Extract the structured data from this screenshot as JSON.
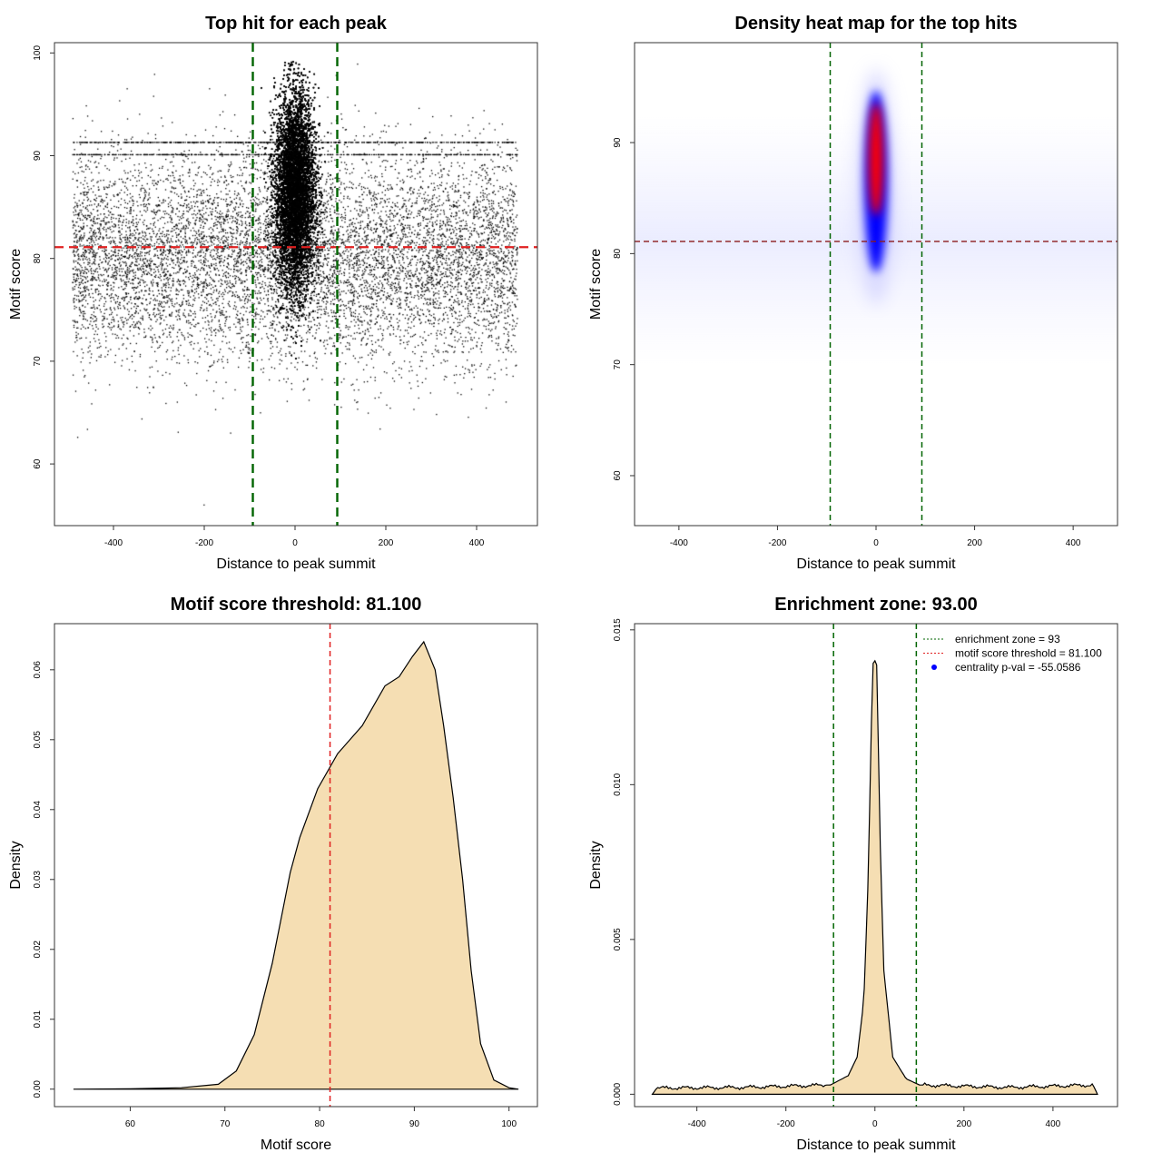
{
  "chart_data": [
    {
      "type": "scatter",
      "title": "Top hit for each peak",
      "xlabel": "Distance to peak summit",
      "ylabel": "Motif score",
      "xticks": [
        -400,
        -200,
        0,
        200,
        400
      ],
      "yticks": [
        60,
        70,
        80,
        90,
        100
      ],
      "xlim": [
        -530,
        534
      ],
      "ylim": [
        54,
        101
      ],
      "hlines": [
        {
          "y": 81.1,
          "color": "#e02020",
          "style": "dashed"
        }
      ],
      "vlines": [
        {
          "x": -93,
          "color": "#006400",
          "style": "dashed"
        },
        {
          "x": 93,
          "color": "#006400",
          "style": "dashed"
        }
      ],
      "point_color": "#000000"
    },
    {
      "type": "heatmap",
      "title": "Density heat map for the top hits",
      "xlabel": "Distance to peak summit",
      "ylabel": "Motif score",
      "xticks": [
        -400,
        -200,
        0,
        200,
        400
      ],
      "yticks": [
        60,
        70,
        80,
        90
      ],
      "xlim": [
        -490,
        490
      ],
      "ylim": [
        55.5,
        99
      ],
      "colors": [
        "#ffffff",
        "#0000ff",
        "#ff0000"
      ],
      "hlines": [
        {
          "y": 81.1,
          "color": "#8b1a1a",
          "style": "dashed"
        }
      ],
      "vlines": [
        {
          "x": -93,
          "color": "#006400",
          "style": "dashed"
        },
        {
          "x": 93,
          "color": "#006400",
          "style": "dashed"
        }
      ]
    },
    {
      "type": "area",
      "title": "Motif score threshold: 81.100",
      "xlabel": "Motif score",
      "ylabel": "Density",
      "xticks": [
        60,
        70,
        80,
        90,
        100
      ],
      "yticks": [
        "0.00",
        "0.01",
        "0.02",
        "0.03",
        "0.04",
        "0.05",
        "0.06"
      ],
      "xlim": [
        52,
        103
      ],
      "ylim": [
        -0.0025,
        0.0666
      ],
      "fill": "#f5deb3",
      "x": [
        54,
        60,
        65.4,
        69.3,
        71.2,
        73.1,
        75,
        76.9,
        77.9,
        79.8,
        81.9,
        84.5,
        86.9,
        88.4,
        89.8,
        91,
        92.2,
        93.1,
        94.1,
        95.1,
        96,
        97,
        98.4,
        100,
        101
      ],
      "y": [
        0,
        5e-05,
        0.0002,
        0.0007,
        0.0026,
        0.0078,
        0.018,
        0.031,
        0.036,
        0.043,
        0.048,
        0.052,
        0.0577,
        0.059,
        0.0619,
        0.064,
        0.06,
        0.052,
        0.0417,
        0.03,
        0.017,
        0.0065,
        0.0013,
        0.0002,
        0
      ],
      "vlines": [
        {
          "x": 81.1,
          "color": "#e02020",
          "style": "dashed"
        }
      ]
    },
    {
      "type": "area",
      "title": "Enrichment zone: 93.00",
      "xlabel": "Distance to peak summit",
      "ylabel": "Density",
      "xticks": [
        -400,
        -200,
        0,
        200,
        400
      ],
      "yticks": [
        "0.000",
        "0.005",
        "0.010",
        "0.015"
      ],
      "xlim": [
        -540,
        545
      ],
      "ylim": [
        -0.0004,
        0.0152
      ],
      "fill": "#f5deb3",
      "x": [
        -500,
        -490,
        -300,
        -100,
        -60,
        -40,
        -25,
        -15,
        -8,
        -3,
        0,
        3,
        6,
        10,
        20,
        40,
        70,
        100,
        300,
        490,
        500
      ],
      "y": [
        0,
        0.0002,
        0.00022,
        0.0003,
        0.0006,
        0.0012,
        0.003,
        0.007,
        0.012,
        0.0144,
        0.014,
        0.0143,
        0.013,
        0.009,
        0.004,
        0.0012,
        0.0005,
        0.0003,
        0.00022,
        0.0003,
        0
      ],
      "vlines": [
        {
          "x": -93,
          "color": "#006400",
          "style": "dashed"
        },
        {
          "x": 93,
          "color": "#006400",
          "style": "dashed"
        }
      ],
      "legend": {
        "placement": "top-right",
        "entries": [
          {
            "label": "enrichment zone = 93",
            "color": "#006400",
            "kind": "dotted-line"
          },
          {
            "label": "motif score threshold = 81.100",
            "color": "#e02020",
            "kind": "dotted-line"
          },
          {
            "label": "centrality p-val = -55.0586",
            "color": "#0000ff",
            "kind": "point"
          }
        ]
      }
    }
  ]
}
